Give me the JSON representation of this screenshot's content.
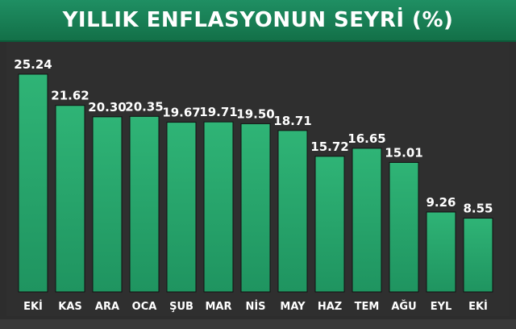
{
  "title": "YILLIK ENFLASYONUN SEYRİ (%)",
  "colors": {
    "title_bg": "#1a8559",
    "bar": "#1f9460",
    "bar_top": "#2fb476",
    "background": "#2d2d2d",
    "text": "#ffffff"
  },
  "chart_data": {
    "type": "bar",
    "title": "YILLIK ENFLASYONUN SEYRİ (%)",
    "categories": [
      "EKİ",
      "KAS",
      "ARA",
      "OCA",
      "ŞUB",
      "MAR",
      "NİS",
      "MAY",
      "HAZ",
      "TEM",
      "AĞU",
      "EYL",
      "EKİ"
    ],
    "values": [
      25.24,
      21.62,
      20.3,
      20.35,
      19.67,
      19.71,
      19.5,
      18.71,
      15.72,
      16.65,
      15.01,
      9.26,
      8.55
    ],
    "value_labels": [
      "25.24",
      "21.62",
      "20.30",
      "20.35",
      "19.67",
      "19.71",
      "19.50",
      "18.71",
      "15.72",
      "16.65",
      "15.01",
      "9.26",
      "8.55"
    ],
    "xlabel": "",
    "ylabel": "",
    "ylim": [
      0,
      25.24
    ],
    "grid": false,
    "legend": "none"
  }
}
